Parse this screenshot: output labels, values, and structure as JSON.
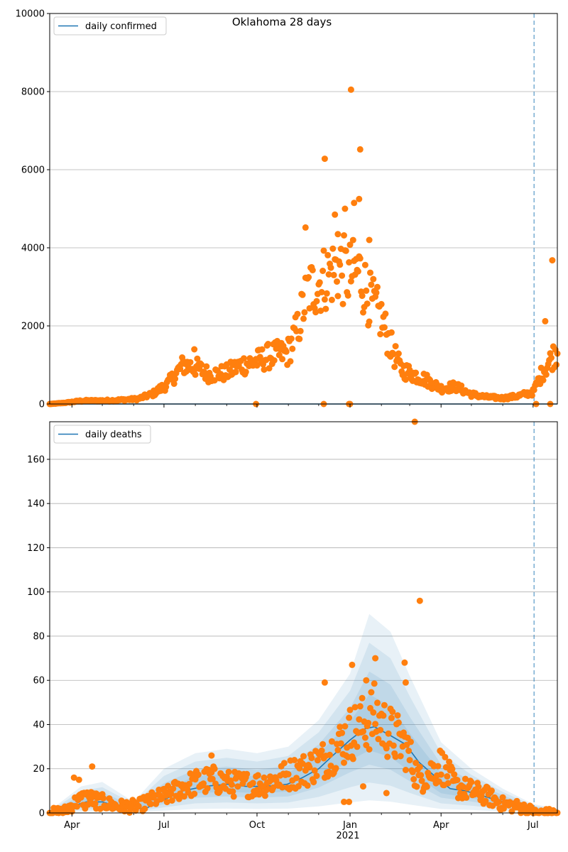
{
  "figure": {
    "title": "Oklahoma 28 days"
  },
  "colors": {
    "model": "#1f77b4",
    "observed": "#ff7f0e",
    "band": "#1f77b4",
    "grid": "#b0b0b0",
    "vline": "#1f77b4"
  },
  "x_axis": {
    "ticks": [
      {
        "date": "2020-04-01",
        "label": "Apr"
      },
      {
        "date": "2020-07-01",
        "label": "Jul"
      },
      {
        "date": "2020-10-01",
        "label": "Oct"
      },
      {
        "date": "2021-01-01",
        "label": "Jan"
      },
      {
        "date": "2021-04-01",
        "label": "Apr"
      },
      {
        "date": "2021-07-01",
        "label": "Jul"
      }
    ],
    "year_label": "2021",
    "range": [
      "2020-03-10",
      "2021-07-25"
    ]
  },
  "chart_data": [
    {
      "type": "scatter",
      "legend": "daily confirmed",
      "legend_position": "top-left",
      "ylim": [
        0,
        10000
      ],
      "yticks": [
        0,
        2000,
        4000,
        6000,
        8000,
        10000
      ],
      "grid": "y",
      "forecast_start": "2021-07-02",
      "model_line": {
        "x": [
          "2020-03-10",
          "2021-07-25"
        ],
        "y": [
          0,
          0
        ]
      },
      "observed_anchors": [
        [
          "2020-03-10",
          0
        ],
        [
          "2020-03-25",
          30
        ],
        [
          "2020-04-10",
          80
        ],
        [
          "2020-05-10",
          90
        ],
        [
          "2020-06-05",
          130
        ],
        [
          "2020-06-20",
          260
        ],
        [
          "2020-07-05",
          520
        ],
        [
          "2020-07-20",
          1000
        ],
        [
          "2020-08-01",
          950
        ],
        [
          "2020-08-15",
          750
        ],
        [
          "2020-09-01",
          800
        ],
        [
          "2020-09-15",
          1000
        ],
        [
          "2020-10-01",
          1100
        ],
        [
          "2020-10-15",
          1250
        ],
        [
          "2020-10-31",
          1300
        ],
        [
          "2020-11-10",
          1900
        ],
        [
          "2020-11-20",
          2900
        ],
        [
          "2020-12-01",
          3100
        ],
        [
          "2020-12-10",
          3300
        ],
        [
          "2020-12-20",
          3500
        ],
        [
          "2021-01-01",
          3300
        ],
        [
          "2021-01-10",
          3400
        ],
        [
          "2021-01-20",
          2700
        ],
        [
          "2021-02-01",
          2200
        ],
        [
          "2021-02-10",
          1500
        ],
        [
          "2021-02-20",
          900
        ],
        [
          "2021-03-01",
          800
        ],
        [
          "2021-03-15",
          650
        ],
        [
          "2021-04-01",
          400
        ],
        [
          "2021-04-15",
          450
        ],
        [
          "2021-05-01",
          250
        ],
        [
          "2021-05-15",
          180
        ],
        [
          "2021-06-01",
          150
        ],
        [
          "2021-06-15",
          200
        ],
        [
          "2021-07-01",
          300
        ],
        [
          "2021-07-10",
          800
        ],
        [
          "2021-07-25",
          1400
        ]
      ],
      "observed_outliers": [
        [
          "2021-01-02",
          8050
        ],
        [
          "2020-12-07",
          6280
        ],
        [
          "2021-01-11",
          6520
        ],
        [
          "2021-01-10",
          5250
        ],
        [
          "2021-01-05",
          5150
        ],
        [
          "2020-12-27",
          5000
        ],
        [
          "2020-12-17",
          4850
        ],
        [
          "2020-11-18",
          4520
        ],
        [
          "2021-01-20",
          4200
        ],
        [
          "2021-07-20",
          3680
        ],
        [
          "2020-12-20",
          4350
        ],
        [
          "2021-07-13",
          2120
        ],
        [
          "2020-07-31",
          1400
        ],
        [
          "2020-12-06",
          0
        ],
        [
          "2021-01-01",
          0
        ],
        [
          "2020-09-30",
          0
        ],
        [
          "2020-12-31",
          0
        ],
        [
          "2021-07-04",
          0
        ],
        [
          "2021-07-18",
          0
        ]
      ]
    },
    {
      "type": "scatter",
      "legend": "daily deaths",
      "legend_position": "top-left",
      "ylim": [
        0,
        177
      ],
      "yticks": [
        0,
        20,
        40,
        60,
        80,
        100,
        120,
        140,
        160
      ],
      "grid": "y",
      "forecast_start": "2021-07-02",
      "model_line": {
        "x": [
          "2020-03-10",
          "2020-03-20",
          "2020-04-01",
          "2020-04-15",
          "2020-05-01",
          "2020-05-15",
          "2020-06-01",
          "2020-06-15",
          "2020-07-01",
          "2020-07-20",
          "2020-08-10",
          "2020-09-01",
          "2020-09-20",
          "2020-10-10",
          "2020-10-31",
          "2020-11-15",
          "2020-12-01",
          "2020-12-15",
          "2021-01-01",
          "2021-01-15",
          "2021-01-25",
          "2021-02-10",
          "2021-02-25",
          "2021-03-10",
          "2021-03-25",
          "2021-04-10",
          "2021-04-25",
          "2021-05-10",
          "2021-05-25",
          "2021-06-10",
          "2021-06-25",
          "2021-07-10",
          "2021-07-25"
        ],
        "y": [
          0,
          0.5,
          3,
          5,
          5,
          3,
          1.5,
          2.5,
          6,
          10,
          12,
          13,
          12,
          12,
          13,
          16,
          20,
          26,
          33,
          38,
          39,
          35,
          31,
          23,
          17,
          11,
          10,
          8,
          6,
          4,
          2,
          1,
          0.5
        ]
      },
      "bands": {
        "x": [
          "2020-03-10",
          "2020-04-10",
          "2020-05-01",
          "2020-06-01",
          "2020-07-01",
          "2020-08-01",
          "2020-09-01",
          "2020-10-01",
          "2020-11-01",
          "2020-12-01",
          "2021-01-01",
          "2021-01-20",
          "2021-02-10",
          "2021-03-01",
          "2021-04-01",
          "2021-05-01",
          "2021-06-01",
          "2021-07-01",
          "2021-07-25"
        ],
        "center": [
          0,
          4,
          4.5,
          1.5,
          7,
          12,
          13,
          12,
          13,
          20,
          32,
          38,
          34,
          25,
          12,
          9,
          5,
          1.5,
          0.5
        ],
        "spreads": [
          1.0,
          0.75,
          0.5,
          0.3
        ],
        "upper": [
          1,
          12,
          14,
          5,
          20,
          27,
          29,
          27,
          30,
          42,
          63,
          90,
          82,
          62,
          32,
          20,
          11,
          4,
          2
        ]
      },
      "observed_anchors": [
        [
          "2020-03-10",
          0
        ],
        [
          "2020-03-25",
          1
        ],
        [
          "2020-04-05",
          5
        ],
        [
          "2020-04-15",
          7
        ],
        [
          "2020-05-01",
          5
        ],
        [
          "2020-05-15",
          3
        ],
        [
          "2020-06-05",
          3
        ],
        [
          "2020-06-20",
          6
        ],
        [
          "2020-07-05",
          8
        ],
        [
          "2020-07-20",
          12
        ],
        [
          "2020-08-05",
          14
        ],
        [
          "2020-08-20",
          15
        ],
        [
          "2020-09-05",
          13
        ],
        [
          "2020-09-20",
          13
        ],
        [
          "2020-10-05",
          13
        ],
        [
          "2020-10-20",
          15
        ],
        [
          "2020-11-05",
          18
        ],
        [
          "2020-11-20",
          20
        ],
        [
          "2020-12-05",
          24
        ],
        [
          "2020-12-20",
          30
        ],
        [
          "2021-01-01",
          36
        ],
        [
          "2021-01-15",
          40
        ],
        [
          "2021-01-25",
          44
        ],
        [
          "2021-02-10",
          36
        ],
        [
          "2021-02-25",
          30
        ],
        [
          "2021-03-10",
          15
        ],
        [
          "2021-03-20",
          18
        ],
        [
          "2021-04-01",
          22
        ],
        [
          "2021-04-15",
          12
        ],
        [
          "2021-05-01",
          10
        ],
        [
          "2021-05-15",
          8
        ],
        [
          "2021-06-01",
          4
        ],
        [
          "2021-06-15",
          3
        ],
        [
          "2021-06-30",
          1
        ],
        [
          "2021-07-02",
          0
        ]
      ],
      "observed_outliers": [
        [
          "2021-03-06",
          177
        ],
        [
          "2021-03-11",
          96
        ],
        [
          "2021-01-26",
          70
        ],
        [
          "2020-12-07",
          59
        ],
        [
          "2021-01-03",
          67
        ],
        [
          "2021-01-17",
          60
        ],
        [
          "2021-02-24",
          68
        ],
        [
          "2021-02-25",
          59
        ],
        [
          "2020-04-21",
          21
        ],
        [
          "2020-04-03",
          16
        ],
        [
          "2020-08-17",
          26
        ],
        [
          "2020-12-26",
          5
        ],
        [
          "2021-02-06",
          9
        ],
        [
          "2021-01-14",
          12
        ],
        [
          "2020-12-31",
          5
        ],
        [
          "2020-04-08",
          15
        ],
        [
          "2020-04-14",
          2
        ],
        [
          "2020-04-25",
          2
        ]
      ]
    }
  ]
}
